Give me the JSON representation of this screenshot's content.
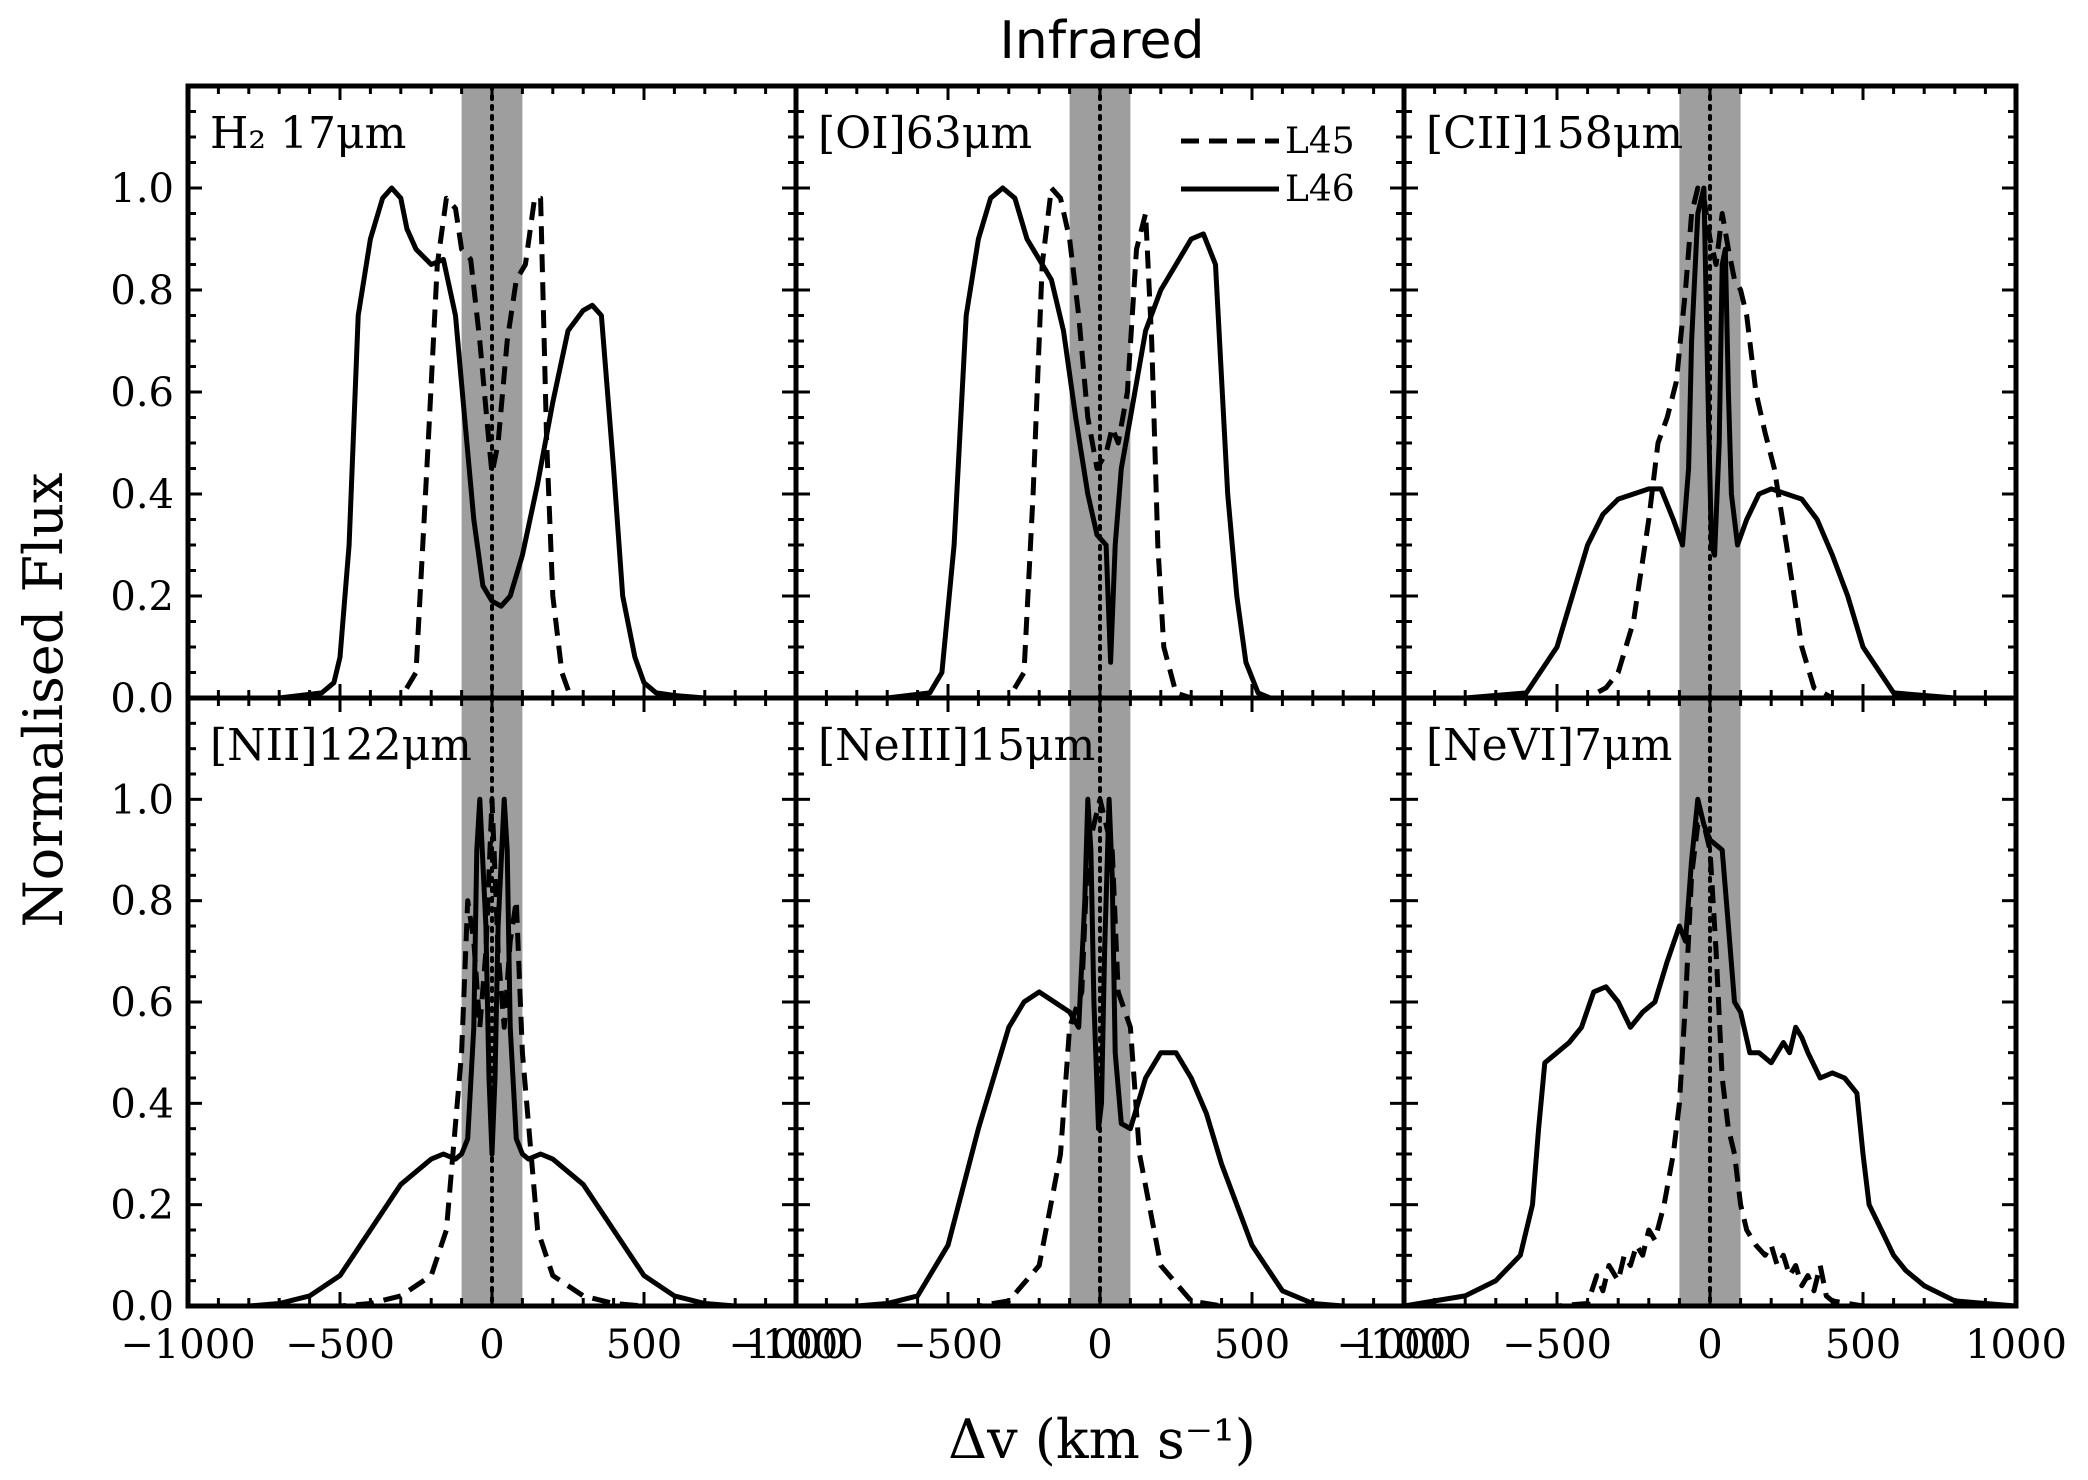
{
  "chart_data": {
    "type": "line",
    "title": "Infrared",
    "xlabel": "Δv (km s⁻¹)",
    "ylabel": "Normalised Flux",
    "xlim": [
      -1000,
      1000
    ],
    "ylim": [
      0,
      1.2
    ],
    "x_ticks": [
      -1000,
      -500,
      0,
      500,
      1000
    ],
    "x_tick_labels": [
      "−1000",
      "−500",
      "0",
      "500",
      "1000"
    ],
    "y_ticks": [
      0.0,
      0.2,
      0.4,
      0.6,
      0.8,
      1.0
    ],
    "y_tick_labels": [
      "0.0",
      "0.2",
      "0.4",
      "0.6",
      "0.8",
      "1.0"
    ],
    "shaded_band": [
      -100,
      100
    ],
    "reference_line_x": 0,
    "legend": [
      {
        "name": "L45",
        "style": "dashed"
      },
      {
        "name": "L46",
        "style": "solid"
      }
    ],
    "panels": [
      {
        "label": "H₂ 17μm",
        "series": [
          {
            "name": "L45",
            "style": "dashed",
            "x": [
              -1000,
              -300,
              -250,
              -210,
              -180,
              -150,
              -120,
              -100,
              -70,
              -40,
              -10,
              0,
              20,
              50,
              80,
              110,
              140,
              160,
              180,
              200,
              230,
              260,
              300,
              1000
            ],
            "y": [
              0,
              0,
              0.05,
              0.5,
              0.85,
              0.98,
              0.96,
              0.88,
              0.86,
              0.7,
              0.5,
              0.44,
              0.5,
              0.7,
              0.82,
              0.85,
              0.98,
              0.98,
              0.5,
              0.2,
              0.05,
              0,
              0,
              0
            ]
          },
          {
            "name": "L46",
            "style": "solid",
            "x": [
              -1000,
              -700,
              -560,
              -520,
              -500,
              -470,
              -440,
              -400,
              -360,
              -330,
              -300,
              -280,
              -250,
              -200,
              -160,
              -120,
              -90,
              -60,
              -30,
              0,
              30,
              60,
              100,
              150,
              200,
              250,
              300,
              330,
              360,
              380,
              400,
              430,
              470,
              500,
              540,
              600,
              700,
              1000
            ],
            "y": [
              0,
              0,
              0.01,
              0.03,
              0.08,
              0.3,
              0.75,
              0.9,
              0.98,
              1.0,
              0.98,
              0.92,
              0.88,
              0.85,
              0.86,
              0.75,
              0.55,
              0.35,
              0.22,
              0.19,
              0.18,
              0.2,
              0.28,
              0.42,
              0.58,
              0.72,
              0.76,
              0.77,
              0.75,
              0.6,
              0.45,
              0.2,
              0.08,
              0.03,
              0.01,
              0.005,
              0,
              0
            ]
          }
        ]
      },
      {
        "label": "[OI]63μm",
        "series": [
          {
            "name": "L45",
            "style": "dashed",
            "x": [
              -1000,
              -300,
              -250,
              -220,
              -190,
              -160,
              -130,
              -100,
              -70,
              -40,
              -10,
              20,
              40,
              60,
              90,
              120,
              150,
              170,
              190,
              210,
              250,
              300,
              1000
            ],
            "y": [
              0,
              0,
              0.05,
              0.4,
              0.85,
              1.0,
              0.98,
              0.9,
              0.75,
              0.55,
              0.45,
              0.48,
              0.53,
              0.5,
              0.6,
              0.88,
              0.95,
              0.7,
              0.3,
              0.1,
              0.01,
              0,
              0
            ]
          },
          {
            "name": "L46",
            "style": "solid",
            "x": [
              -1000,
              -700,
              -560,
              -520,
              -480,
              -440,
              -400,
              -360,
              -320,
              -280,
              -240,
              -200,
              -160,
              -120,
              -80,
              -40,
              -10,
              20,
              35,
              50,
              70,
              100,
              150,
              200,
              250,
              300,
              340,
              380,
              420,
              450,
              480,
              520,
              560,
              700,
              1000
            ],
            "y": [
              0,
              0,
              0.01,
              0.05,
              0.3,
              0.75,
              0.9,
              0.98,
              1.0,
              0.98,
              0.9,
              0.86,
              0.82,
              0.72,
              0.55,
              0.4,
              0.32,
              0.3,
              0.07,
              0.3,
              0.45,
              0.55,
              0.72,
              0.8,
              0.85,
              0.9,
              0.91,
              0.85,
              0.4,
              0.2,
              0.07,
              0.01,
              0,
              0,
              0
            ]
          }
        ]
      },
      {
        "label": "[CII]158μm",
        "series": [
          {
            "name": "L45",
            "style": "dashed",
            "x": [
              -1000,
              -400,
              -340,
              -300,
              -250,
              -200,
              -170,
              -140,
              -110,
              -80,
              -60,
              -40,
              -20,
              0,
              20,
              40,
              60,
              80,
              100,
              120,
              150,
              180,
              210,
              250,
              300,
              340,
              400,
              1000
            ],
            "y": [
              0,
              0,
              0.02,
              0.05,
              0.15,
              0.35,
              0.5,
              0.55,
              0.62,
              0.8,
              0.95,
              1.0,
              0.98,
              0.9,
              0.85,
              0.95,
              0.88,
              0.82,
              0.8,
              0.75,
              0.6,
              0.52,
              0.45,
              0.3,
              0.1,
              0.02,
              0,
              0
            ]
          },
          {
            "name": "L46",
            "style": "solid",
            "x": [
              -1000,
              -800,
              -600,
              -500,
              -450,
              -400,
              -350,
              -300,
              -250,
              -200,
              -160,
              -120,
              -90,
              -70,
              -60,
              -40,
              -20,
              -5,
              5,
              15,
              30,
              40,
              50,
              60,
              70,
              90,
              120,
              160,
              200,
              250,
              300,
              350,
              400,
              450,
              500,
              600,
              800,
              1000
            ],
            "y": [
              0,
              0,
              0.01,
              0.1,
              0.2,
              0.3,
              0.36,
              0.39,
              0.4,
              0.41,
              0.41,
              0.35,
              0.3,
              0.45,
              0.7,
              0.95,
              1.0,
              0.55,
              0.3,
              0.28,
              0.5,
              0.85,
              0.88,
              0.6,
              0.4,
              0.3,
              0.35,
              0.4,
              0.41,
              0.4,
              0.39,
              0.35,
              0.28,
              0.2,
              0.1,
              0.01,
              0,
              0
            ]
          }
        ]
      },
      {
        "label": "[NII]122μm",
        "series": [
          {
            "name": "L45",
            "style": "dashed",
            "x": [
              -1000,
              -500,
              -400,
              -300,
              -200,
              -150,
              -100,
              -80,
              -60,
              -40,
              -20,
              0,
              20,
              40,
              60,
              80,
              100,
              150,
              200,
              300,
              400,
              500,
              1000
            ],
            "y": [
              0,
              0,
              0.005,
              0.02,
              0.06,
              0.15,
              0.5,
              0.8,
              0.72,
              0.55,
              0.7,
              1.0,
              0.7,
              0.55,
              0.72,
              0.8,
              0.5,
              0.15,
              0.06,
              0.02,
              0.005,
              0,
              0
            ]
          },
          {
            "name": "L46",
            "style": "solid",
            "x": [
              -1000,
              -800,
              -700,
              -600,
              -500,
              -400,
              -300,
              -200,
              -160,
              -120,
              -100,
              -80,
              -60,
              -50,
              -40,
              -20,
              -10,
              0,
              10,
              20,
              40,
              50,
              60,
              80,
              100,
              120,
              160,
              200,
              300,
              400,
              500,
              600,
              700,
              800,
              1000
            ],
            "y": [
              0,
              0,
              0.005,
              0.02,
              0.06,
              0.15,
              0.24,
              0.29,
              0.3,
              0.29,
              0.3,
              0.33,
              0.55,
              0.9,
              1.0,
              0.75,
              0.45,
              0.3,
              0.45,
              0.75,
              1.0,
              0.9,
              0.55,
              0.33,
              0.3,
              0.29,
              0.3,
              0.29,
              0.24,
              0.15,
              0.06,
              0.02,
              0.005,
              0,
              0
            ]
          }
        ]
      },
      {
        "label": "[NeIII]15μm",
        "series": [
          {
            "name": "L45",
            "style": "dashed",
            "x": [
              -1000,
              -400,
              -300,
              -200,
              -130,
              -100,
              -60,
              -40,
              -20,
              0,
              20,
              40,
              60,
              100,
              130,
              200,
              300,
              400,
              1000
            ],
            "y": [
              0,
              0,
              0.01,
              0.08,
              0.3,
              0.55,
              0.62,
              0.9,
              0.95,
              1.0,
              0.95,
              0.9,
              0.62,
              0.55,
              0.3,
              0.08,
              0.01,
              0,
              0
            ]
          },
          {
            "name": "L46",
            "style": "solid",
            "x": [
              -1000,
              -800,
              -700,
              -600,
              -500,
              -400,
              -300,
              -250,
              -200,
              -150,
              -100,
              -70,
              -50,
              -40,
              -30,
              -20,
              -5,
              5,
              15,
              30,
              40,
              50,
              70,
              100,
              150,
              200,
              250,
              300,
              350,
              400,
              500,
              600,
              700,
              800,
              1000
            ],
            "y": [
              0,
              0,
              0.005,
              0.02,
              0.12,
              0.35,
              0.55,
              0.6,
              0.62,
              0.6,
              0.58,
              0.55,
              0.8,
              1.0,
              0.9,
              0.6,
              0.35,
              0.4,
              0.7,
              1.0,
              0.85,
              0.5,
              0.36,
              0.35,
              0.45,
              0.5,
              0.5,
              0.45,
              0.38,
              0.28,
              0.12,
              0.03,
              0.005,
              0,
              0
            ]
          }
        ]
      },
      {
        "label": "[NeVI]7μm",
        "series": [
          {
            "name": "L45",
            "style": "dashed",
            "x": [
              -1000,
              -500,
              -400,
              -370,
              -350,
              -330,
              -300,
              -280,
              -260,
              -240,
              -220,
              -200,
              -180,
              -150,
              -120,
              -100,
              -80,
              -60,
              -40,
              -20,
              0,
              20,
              40,
              60,
              80,
              100,
              120,
              150,
              180,
              200,
              220,
              240,
              260,
              280,
              300,
              320,
              340,
              360,
              380,
              400,
              450,
              500,
              1000
            ],
            "y": [
              0,
              0,
              0.005,
              0.06,
              0.03,
              0.08,
              0.05,
              0.1,
              0.08,
              0.12,
              0.1,
              0.15,
              0.13,
              0.2,
              0.3,
              0.4,
              0.6,
              0.85,
              0.95,
              0.95,
              0.9,
              0.7,
              0.45,
              0.35,
              0.3,
              0.2,
              0.15,
              0.12,
              0.1,
              0.12,
              0.08,
              0.1,
              0.06,
              0.08,
              0.04,
              0.06,
              0.03,
              0.08,
              0.02,
              0.01,
              0.005,
              0,
              0
            ]
          },
          {
            "name": "L46",
            "style": "solid",
            "x": [
              -1000,
              -900,
              -800,
              -700,
              -620,
              -580,
              -560,
              -540,
              -500,
              -460,
              -420,
              -380,
              -340,
              -300,
              -260,
              -220,
              -180,
              -140,
              -100,
              -80,
              -60,
              -40,
              -20,
              0,
              20,
              40,
              60,
              80,
              100,
              130,
              160,
              200,
              240,
              260,
              280,
              300,
              320,
              360,
              400,
              440,
              480,
              500,
              520,
              560,
              600,
              640,
              700,
              800,
              900,
              1000
            ],
            "y": [
              0,
              0.01,
              0.02,
              0.05,
              0.1,
              0.2,
              0.35,
              0.48,
              0.5,
              0.52,
              0.55,
              0.62,
              0.63,
              0.6,
              0.55,
              0.58,
              0.6,
              0.68,
              0.75,
              0.72,
              0.88,
              1.0,
              0.95,
              0.92,
              0.91,
              0.9,
              0.75,
              0.6,
              0.58,
              0.5,
              0.5,
              0.48,
              0.52,
              0.5,
              0.55,
              0.53,
              0.5,
              0.45,
              0.46,
              0.45,
              0.42,
              0.3,
              0.2,
              0.15,
              0.1,
              0.07,
              0.04,
              0.01,
              0.005,
              0
            ]
          }
        ]
      }
    ]
  }
}
